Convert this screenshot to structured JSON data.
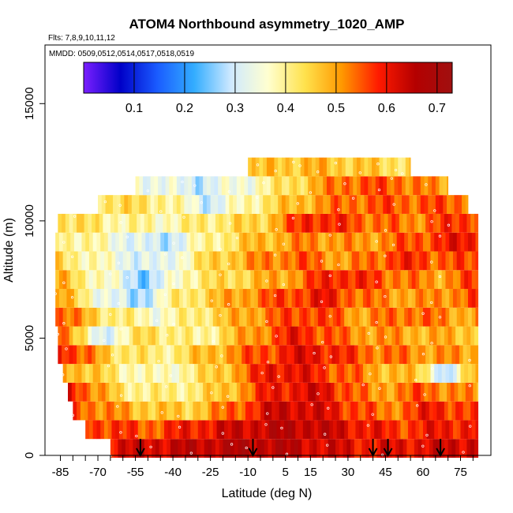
{
  "chart_data": {
    "type": "heatmap",
    "title": "ATOM4 Northbound asymmetry_1020_AMP",
    "flights_label": "Flts: 7,8,9,10,11,12",
    "dates_label": "MMDD: 0509,0512,0514,0517,0518,0519",
    "xlabel": "Latitude (deg N)",
    "ylabel": "Altitude (m)",
    "xlim": [
      -88,
      84
    ],
    "ylim": [
      0,
      17500
    ],
    "x_ticks": [
      -85,
      -70,
      -55,
      -40,
      -25,
      -10,
      5,
      15,
      30,
      45,
      60,
      75
    ],
    "x_tick_labels": [
      "-85",
      "-70",
      "-55",
      "-40",
      "-25",
      "-10",
      "5",
      "15",
      "30",
      "45",
      "60",
      "75"
    ],
    "y_ticks": [
      0,
      5000,
      10000,
      15000
    ],
    "y_tick_labels": [
      "0",
      "5000",
      "10000",
      "15000"
    ],
    "colorbar": {
      "range": [
        0.0,
        0.73
      ],
      "ticks": [
        0.1,
        0.2,
        0.3,
        0.4,
        0.5,
        0.6,
        0.7
      ],
      "tick_labels": [
        "0.1",
        "0.2",
        "0.3",
        "0.4",
        "0.5",
        "0.6",
        "0.7"
      ],
      "colors": [
        "#7b1fff",
        "#0000c8",
        "#1a5cff",
        "#33adff",
        "#cfe9ff",
        "#ffffd0",
        "#ffe24d",
        "#ff9900",
        "#ff1a00",
        "#b40000",
        "#a01010"
      ]
    },
    "profile_markers_lat": [
      -53,
      -8,
      40,
      46,
      67
    ],
    "layers": [
      {
        "alt": 300,
        "lat_min": -65,
        "lat_max": 82,
        "lats": [
          -60,
          -40,
          -20,
          0,
          20,
          40,
          60,
          80
        ],
        "values": [
          0.62,
          0.64,
          0.66,
          0.66,
          0.63,
          0.6,
          0.62,
          0.64
        ]
      },
      {
        "alt": 1100,
        "lat_min": -75,
        "lat_max": 82,
        "lats": [
          -70,
          -50,
          -30,
          -10,
          10,
          30,
          50,
          70
        ],
        "values": [
          0.58,
          0.55,
          0.6,
          0.64,
          0.66,
          0.62,
          0.57,
          0.6
        ]
      },
      {
        "alt": 1900,
        "lat_min": -80,
        "lat_max": 82,
        "lats": [
          -75,
          -55,
          -35,
          -15,
          5,
          25,
          45,
          65,
          80
        ],
        "values": [
          0.55,
          0.48,
          0.45,
          0.55,
          0.65,
          0.6,
          0.52,
          0.6,
          0.55
        ]
      },
      {
        "alt": 2700,
        "lat_min": -82,
        "lat_max": 82,
        "lats": [
          -80,
          -60,
          -40,
          -20,
          0,
          20,
          40,
          60,
          80
        ],
        "values": [
          0.6,
          0.42,
          0.4,
          0.46,
          0.6,
          0.62,
          0.5,
          0.55,
          0.5
        ]
      },
      {
        "alt": 3500,
        "lat_min": -84,
        "lat_max": 82,
        "lats": [
          -80,
          -60,
          -45,
          -30,
          -15,
          0,
          20,
          40,
          60,
          70,
          80
        ],
        "values": [
          0.5,
          0.4,
          0.36,
          0.42,
          0.5,
          0.62,
          0.58,
          0.5,
          0.45,
          0.25,
          0.5
        ]
      },
      {
        "alt": 4300,
        "lat_min": -86,
        "lat_max": 82,
        "lats": [
          -85,
          -65,
          -45,
          -25,
          -5,
          15,
          35,
          55,
          75
        ],
        "values": [
          0.62,
          0.45,
          0.4,
          0.48,
          0.56,
          0.62,
          0.55,
          0.52,
          0.5
        ]
      },
      {
        "alt": 5100,
        "lat_min": -86,
        "lat_max": 82,
        "lats": [
          -85,
          -70,
          -50,
          -30,
          -10,
          10,
          30,
          50,
          70
        ],
        "values": [
          0.58,
          0.3,
          0.45,
          0.38,
          0.5,
          0.6,
          0.52,
          0.5,
          0.48
        ]
      },
      {
        "alt": 5900,
        "lat_min": -87,
        "lat_max": 82,
        "lats": [
          -85,
          -65,
          -45,
          -25,
          -5,
          15,
          35,
          55,
          75
        ],
        "values": [
          0.55,
          0.42,
          0.36,
          0.44,
          0.52,
          0.58,
          0.5,
          0.55,
          0.5
        ]
      },
      {
        "alt": 6700,
        "lat_min": -87,
        "lat_max": 82,
        "lats": [
          -85,
          -70,
          -55,
          -40,
          -20,
          0,
          20,
          40,
          60,
          80
        ],
        "values": [
          0.5,
          0.36,
          0.26,
          0.4,
          0.48,
          0.55,
          0.6,
          0.52,
          0.5,
          0.55
        ]
      },
      {
        "alt": 7500,
        "lat_min": -87,
        "lat_max": 82,
        "lats": [
          -85,
          -65,
          -50,
          -35,
          -15,
          5,
          25,
          45,
          65,
          80
        ],
        "values": [
          0.48,
          0.35,
          0.25,
          0.4,
          0.45,
          0.5,
          0.6,
          0.55,
          0.5,
          0.56
        ]
      },
      {
        "alt": 8300,
        "lat_min": -87,
        "lat_max": 82,
        "lats": [
          -85,
          -65,
          -45,
          -30,
          -10,
          10,
          30,
          50,
          70
        ],
        "values": [
          0.44,
          0.35,
          0.3,
          0.42,
          0.5,
          0.55,
          0.5,
          0.58,
          0.55
        ]
      },
      {
        "alt": 9100,
        "lat_min": -87,
        "lat_max": 82,
        "lats": [
          -85,
          -65,
          -45,
          -25,
          -5,
          15,
          35,
          55,
          75
        ],
        "values": [
          0.42,
          0.36,
          0.28,
          0.4,
          0.48,
          0.52,
          0.5,
          0.55,
          0.6
        ]
      },
      {
        "alt": 9900,
        "lat_min": -86,
        "lat_max": 82,
        "lats": [
          -85,
          -65,
          -45,
          -25,
          -5,
          15,
          35,
          55,
          75
        ],
        "values": [
          0.45,
          0.4,
          0.38,
          0.42,
          0.45,
          0.6,
          0.55,
          0.52,
          0.58
        ]
      },
      {
        "alt": 10700,
        "lat_min": -70,
        "lat_max": 78,
        "lats": [
          -65,
          -45,
          -25,
          -5,
          15,
          35,
          55,
          75
        ],
        "values": [
          0.44,
          0.42,
          0.3,
          0.42,
          0.5,
          0.55,
          0.55,
          0.55
        ]
      },
      {
        "alt": 11500,
        "lat_min": -55,
        "lat_max": 70,
        "lats": [
          -50,
          -30,
          -10,
          10,
          30,
          50,
          65
        ],
        "values": [
          0.35,
          0.3,
          0.36,
          0.45,
          0.55,
          0.55,
          0.5
        ]
      },
      {
        "alt": 12300,
        "lat_min": -10,
        "lat_max": 55,
        "lats": [
          -5,
          15,
          35,
          50
        ],
        "values": [
          0.46,
          0.48,
          0.46,
          0.44
        ]
      }
    ]
  }
}
